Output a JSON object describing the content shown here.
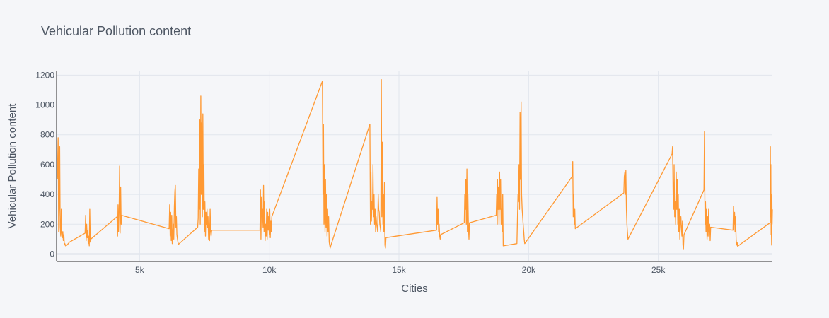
{
  "chart_data": {
    "type": "line",
    "title": "Vehicular Pollution content",
    "xlabel": "Cities",
    "ylabel": "Vehicular Pollution content",
    "xlim": [
      1800,
      29400
    ],
    "ylim": [
      -50,
      1230
    ],
    "x_ticks": [
      5000,
      10000,
      15000,
      20000,
      25000
    ],
    "x_tick_labels": [
      "5k",
      "10k",
      "15k",
      "20k",
      "25k"
    ],
    "y_ticks": [
      0,
      200,
      400,
      600,
      800,
      1000,
      1200
    ],
    "y_tick_labels": [
      "0",
      "200",
      "400",
      "600",
      "800",
      "1000",
      "1200"
    ],
    "grid": true,
    "series": [
      {
        "color": "#ff9933",
        "x": [
          1830,
          1860,
          1880,
          1900,
          1920,
          1940,
          1960,
          1980,
          2000,
          2020,
          2040,
          2060,
          2080,
          2100,
          2120,
          2150,
          2200,
          2300,
          2900,
          2920,
          2940,
          2960,
          2980,
          3000,
          3020,
          3040,
          3060,
          3080,
          3100,
          3120,
          4130,
          4150,
          4170,
          4190,
          4210,
          4230,
          4250,
          4270,
          4290,
          4300,
          6140,
          6160,
          6180,
          6200,
          6220,
          6240,
          6260,
          6280,
          6300,
          6320,
          6340,
          6360,
          6380,
          6400,
          6420,
          6440,
          6470,
          6500,
          7240,
          7260,
          7280,
          7300,
          7320,
          7340,
          7360,
          7380,
          7400,
          7420,
          7440,
          7460,
          7480,
          7500,
          7520,
          7540,
          7560,
          7580,
          7600,
          7620,
          7640,
          7660,
          7680,
          7700,
          7720,
          7740,
          7760,
          7780,
          9640,
          9660,
          9680,
          9700,
          9720,
          9740,
          9760,
          9780,
          9800,
          9820,
          9840,
          9860,
          9880,
          9900,
          9920,
          9940,
          9960,
          9980,
          10000,
          10020,
          10040,
          10060,
          10080,
          10100,
          12050,
          12070,
          12090,
          12110,
          12130,
          12150,
          12170,
          12190,
          12210,
          12230,
          12250,
          12270,
          12290,
          12310,
          12330,
          12350,
          12380,
          13880,
          13900,
          13920,
          13940,
          13960,
          13980,
          14000,
          14020,
          14040,
          14060,
          14080,
          14100,
          14120,
          14140,
          14160,
          14180,
          14200,
          14220,
          14240,
          14260,
          14280,
          14300,
          14320,
          14340,
          14360,
          14380,
          14400,
          14420,
          14440,
          14460,
          14480,
          14500,
          16450,
          16470,
          16490,
          16510,
          16530,
          16550,
          16570,
          16590,
          16610,
          17520,
          17540,
          17560,
          17580,
          17600,
          17620,
          17640,
          17660,
          17680,
          17700,
          17720,
          18750,
          18770,
          18790,
          18800,
          18820,
          18840,
          18860,
          18880,
          18900,
          18920,
          18940,
          18960,
          18980,
          19000,
          19020,
          19550,
          19570,
          19590,
          19610,
          19630,
          19650,
          19670,
          19690,
          19710,
          19730,
          19750,
          19770,
          19790,
          19810,
          19830,
          19850,
          21680,
          21700,
          21720,
          21740,
          21760,
          21780,
          21800,
          23670,
          23690,
          23710,
          23730,
          23750,
          23770,
          23790,
          23810,
          23830,
          25530,
          25550,
          25570,
          25590,
          25610,
          25630,
          25650,
          25670,
          25690,
          25710,
          25730,
          25750,
          25770,
          25790,
          25810,
          25830,
          25850,
          25870,
          25890,
          25910,
          25930,
          25950,
          25970,
          25990,
          26760,
          26780,
          26800,
          26820,
          26840,
          26860,
          26880,
          26900,
          26920,
          26940,
          26960,
          26980,
          27000,
          27020,
          27880,
          27900,
          27920,
          27940,
          27960,
          27980,
          28000,
          28020,
          28040,
          28060,
          28080,
          29310,
          29320,
          29330,
          29340,
          29350,
          29360,
          29370,
          29380,
          29390,
          29400
        ],
        "y": [
          500,
          780,
          150,
          320,
          720,
          180,
          120,
          300,
          140,
          110,
          150,
          90,
          130,
          60,
          70,
          55,
          60,
          80,
          140,
          260,
          90,
          200,
          110,
          160,
          70,
          120,
          55,
          300,
          80,
          100,
          250,
          120,
          330,
          150,
          300,
          590,
          140,
          450,
          200,
          260,
          170,
          330,
          120,
          280,
          90,
          260,
          70,
          150,
          200,
          100,
          320,
          420,
          460,
          180,
          250,
          130,
          90,
          65,
          180,
          240,
          570,
          300,
          900,
          200,
          1060,
          400,
          880,
          250,
          940,
          300,
          600,
          150,
          350,
          120,
          280,
          200,
          300,
          180,
          250,
          100,
          200,
          90,
          300,
          150,
          120,
          160,
          160,
          430,
          100,
          380,
          250,
          300,
          180,
          460,
          150,
          350,
          90,
          200,
          120,
          300,
          100,
          280,
          160,
          250,
          130,
          300,
          110,
          220,
          150,
          250,
          1160,
          400,
          870,
          200,
          600,
          150,
          500,
          180,
          400,
          120,
          300,
          150,
          250,
          80,
          60,
          40,
          60,
          870,
          200,
          550,
          220,
          350,
          300,
          600,
          250,
          400,
          200,
          300,
          150,
          250,
          200,
          180,
          150,
          400,
          300,
          280,
          200,
          180,
          150,
          1170,
          250,
          750,
          200,
          400,
          150,
          480,
          60,
          40,
          110,
          160,
          380,
          200,
          300,
          150,
          200,
          120,
          100,
          130,
          210,
          400,
          300,
          500,
          200,
          570,
          150,
          400,
          180,
          100,
          210,
          260,
          400,
          200,
          500,
          300,
          450,
          200,
          550,
          300,
          500,
          200,
          300,
          150,
          400,
          55,
          70,
          250,
          400,
          350,
          600,
          300,
          950,
          500,
          1020,
          400,
          300,
          250,
          200,
          150,
          100,
          70,
          520,
          620,
          250,
          400,
          200,
          300,
          170,
          410,
          520,
          550,
          400,
          560,
          300,
          200,
          150,
          100,
          670,
          720,
          400,
          300,
          600,
          250,
          350,
          200,
          550,
          300,
          500,
          200,
          400,
          150,
          300,
          100,
          200,
          250,
          180,
          120,
          220,
          60,
          30,
          130,
          430,
          820,
          200,
          350,
          150,
          300,
          100,
          250,
          120,
          300,
          150,
          200,
          90,
          180,
          160,
          320,
          200,
          280,
          150,
          250,
          100,
          60,
          80,
          50,
          55,
          210,
          720,
          250,
          600,
          130,
          180,
          60,
          400,
          200,
          300
        ]
      }
    ]
  }
}
